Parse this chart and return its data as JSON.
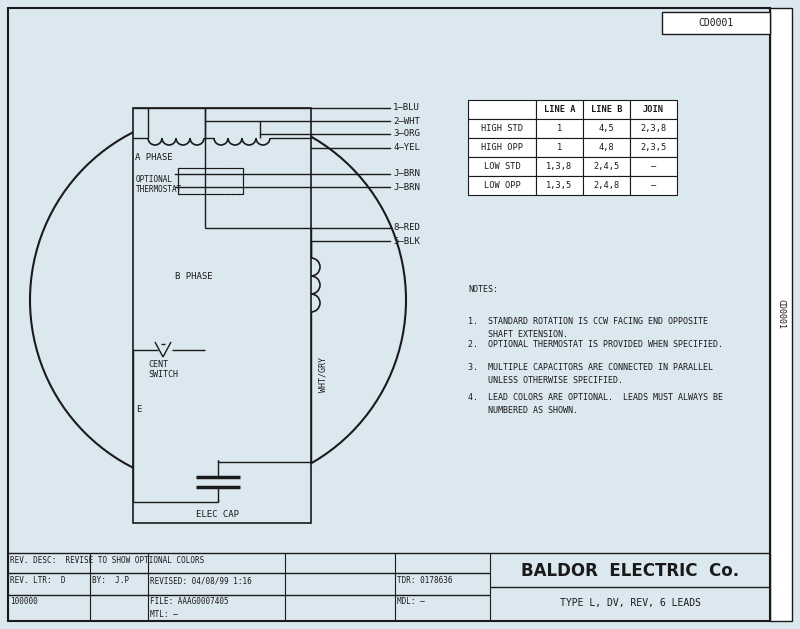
{
  "bg_color": "#dce8f0",
  "line_color": "#1a1a1a",
  "title": "BALDOR  ELECTRIC  Co.",
  "subtitle": "TYPE L, DV, REV, 6 LEADS",
  "code_top": "CD0001",
  "code_side": "CD0001",
  "table_headers": [
    "",
    "LINE A",
    "LINE B",
    "JOIN"
  ],
  "table_rows": [
    [
      "HIGH STD",
      "1",
      "4,5",
      "2,3,8"
    ],
    [
      "HIGH OPP",
      "1",
      "4,8",
      "2,3,5"
    ],
    [
      "LOW STD",
      "1,3,8",
      "2,4,5",
      "–"
    ],
    [
      "LOW OPP",
      "1,3,5",
      "2,4,8",
      "–"
    ]
  ],
  "notes": [
    "NOTES:",
    "1.  STANDARD ROTATION IS CCW FACING END OPPOSITE\n    SHAFT EXTENSION.",
    "2.  OPTIONAL THERMOSTAT IS PROVIDED WHEN SPECIFIED.",
    "3.  MULTIPLE CAPACITORS ARE CONNECTED IN PARALLEL\n    UNLESS OTHERWISE SPECIFIED.",
    "4.  LEAD COLORS ARE OPTIONAL.  LEADS MUST ALWAYS BE\n    NUMBERED AS SHOWN."
  ],
  "wire_labels": [
    "1–BLU",
    "2–WHT",
    "3–ORG",
    "4–YEL",
    "J–BRN",
    "J–BRN",
    "8–RED",
    "5–BLK"
  ],
  "footer_left1": "REV. DESC:  REVISE TO SHOW OPTIONAL COLORS",
  "footer_rev": "REV. LTR:  D",
  "footer_by": "BY:  J.P",
  "footer_revised": "REVISED: 04/08/99 1:16",
  "footer_tdr": "TDR: 0178636",
  "footer_file": "FILE: AAAG0007405",
  "footer_mdl": "MDL: –",
  "footer_mtl": "MTL: –",
  "footer_num": "100000"
}
